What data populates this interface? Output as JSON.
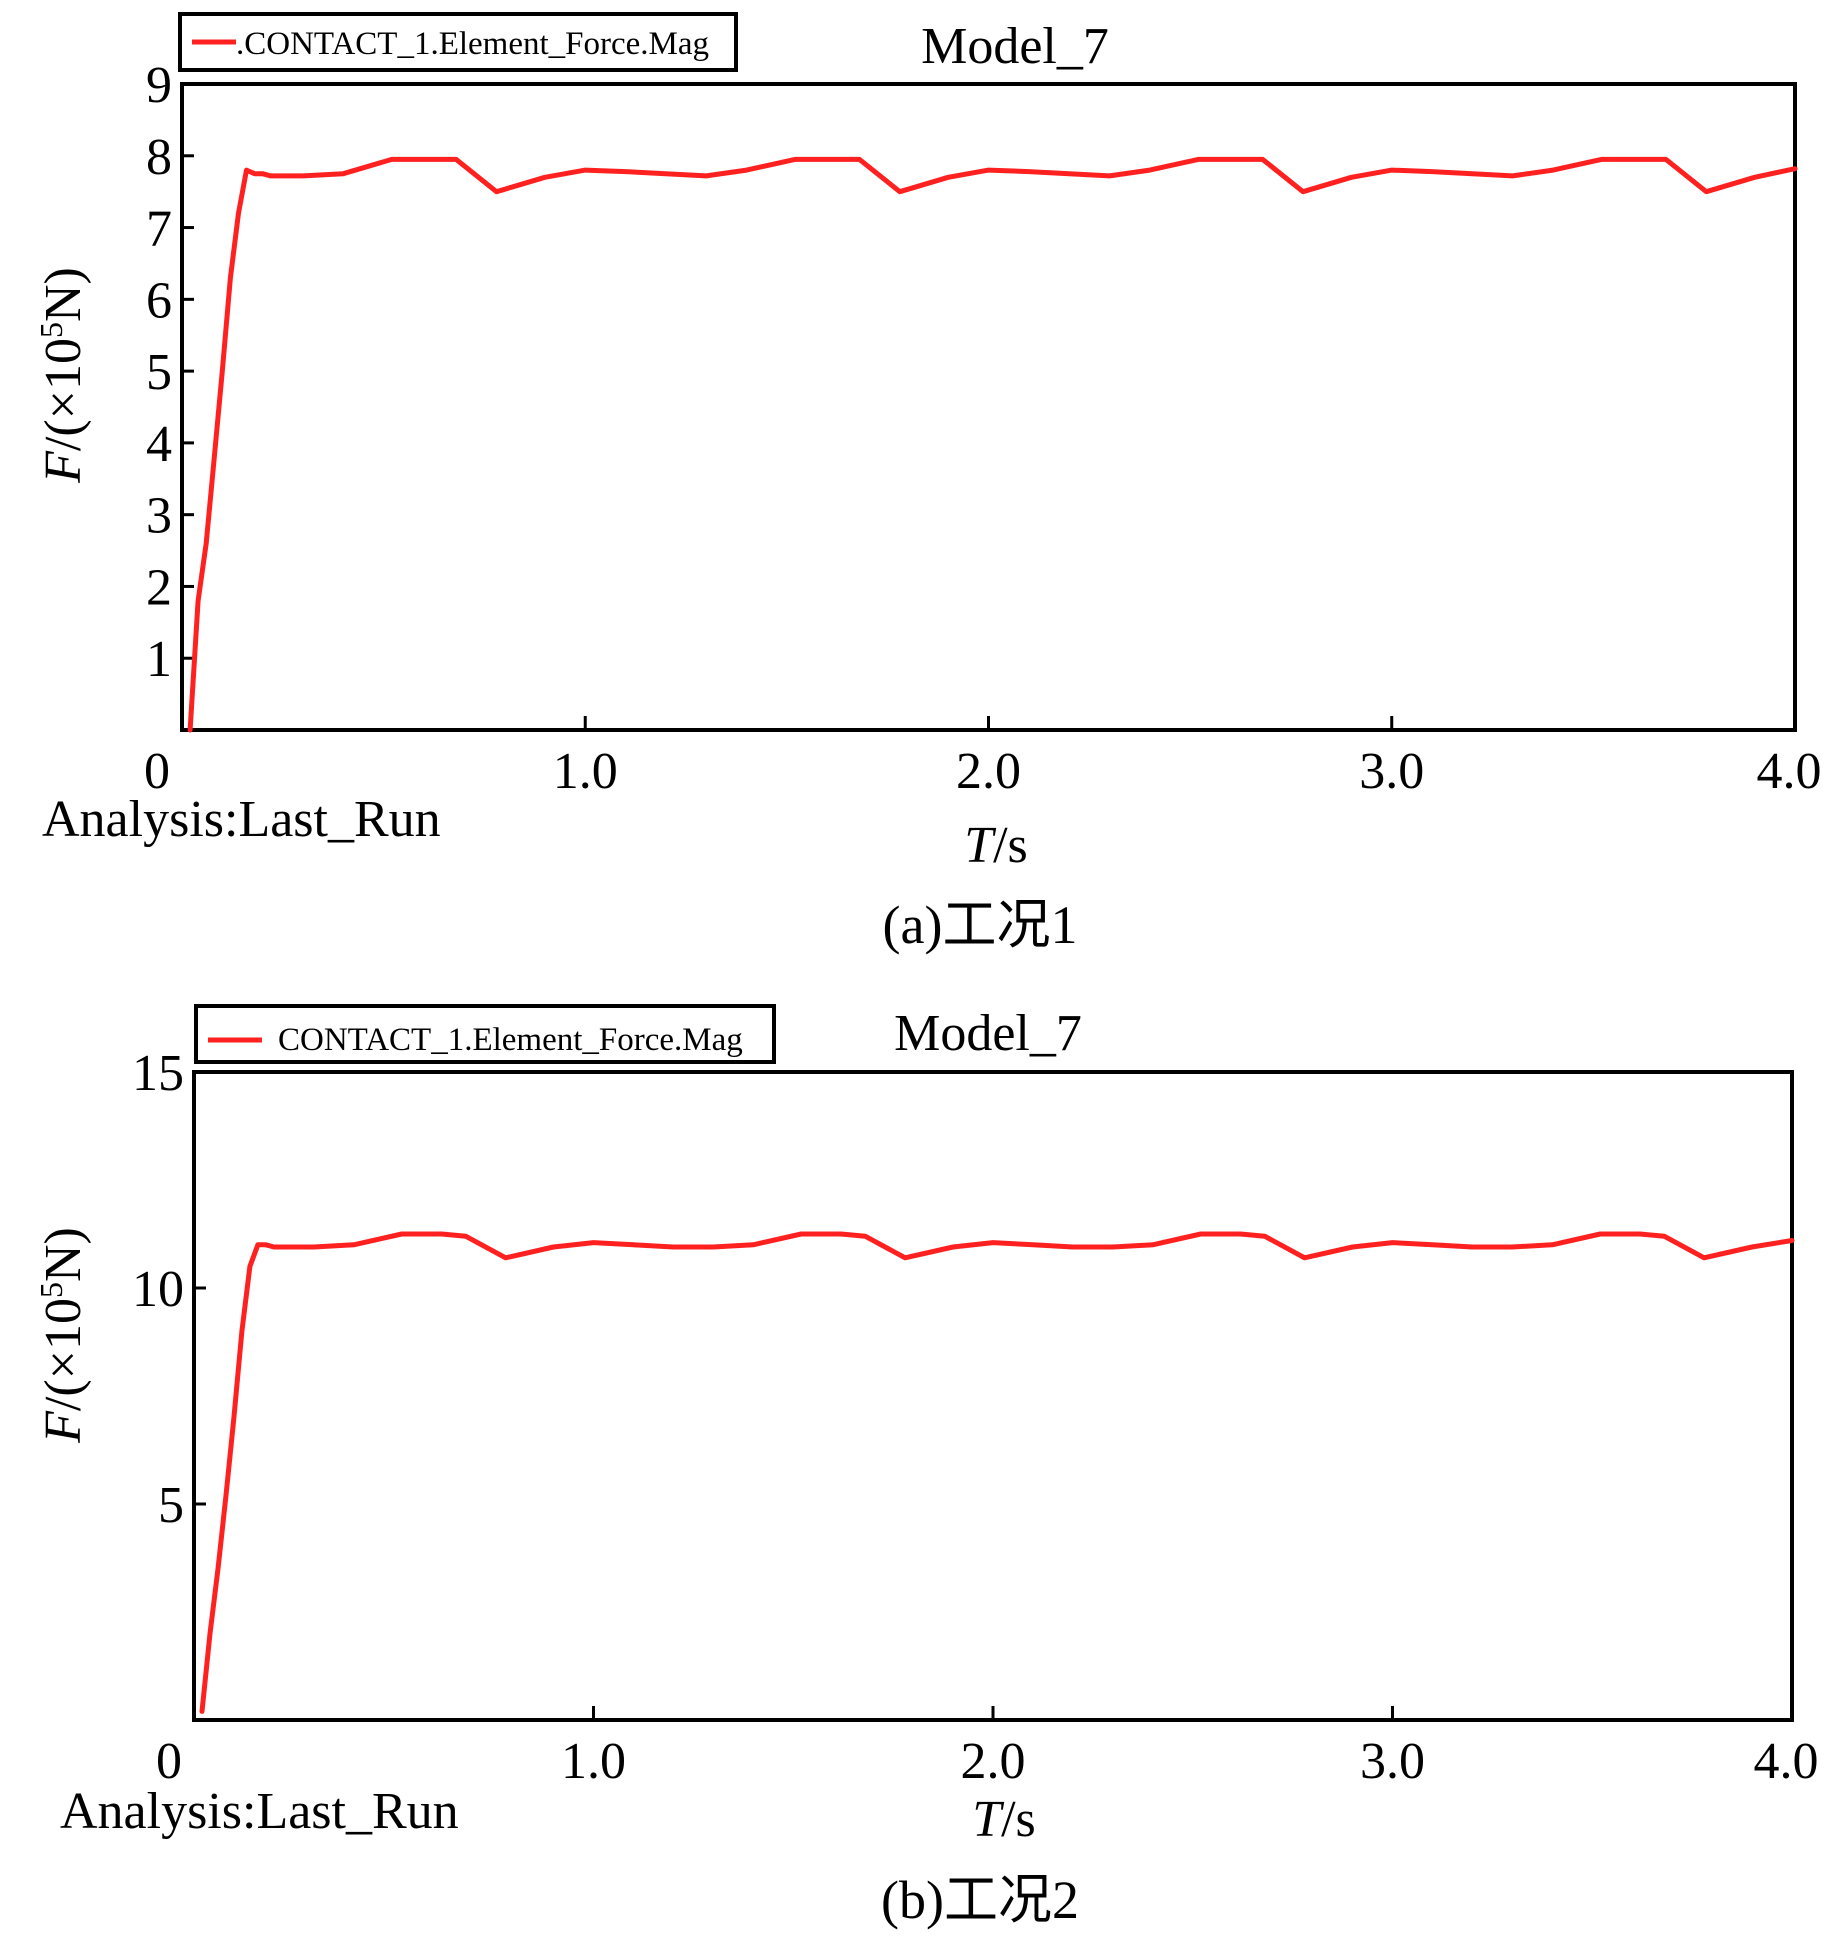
{
  "chart_data": [
    {
      "type": "line",
      "title": "Model_7",
      "legend": "CONTACT_1.Element_Force.Mag",
      "legend_prefix": ".",
      "legend_position": "top-left",
      "xlabel_italic": "T",
      "xlabel_unit": "/s",
      "ylabel_italic": "F",
      "ylabel_unit_pre": "/(×10",
      "ylabel_unit_exp": "5",
      "ylabel_unit_post": "N)",
      "note": "Analysis:Last_Run",
      "caption": "(a)工况1",
      "xlim": [
        0,
        4.0
      ],
      "ylim": [
        0,
        9
      ],
      "xticks": [
        {
          "v": 0,
          "label": "0"
        },
        {
          "v": 1.0,
          "label": "1.0"
        },
        {
          "v": 2.0,
          "label": "2.0"
        },
        {
          "v": 3.0,
          "label": "3.0"
        },
        {
          "v": 4.0,
          "label": "4.0"
        }
      ],
      "yticks": [
        {
          "v": 1,
          "label": "1"
        },
        {
          "v": 2,
          "label": "2"
        },
        {
          "v": 3,
          "label": "3"
        },
        {
          "v": 4,
          "label": "4"
        },
        {
          "v": 5,
          "label": "5"
        },
        {
          "v": 6,
          "label": "6"
        },
        {
          "v": 7,
          "label": "7"
        },
        {
          "v": 8,
          "label": "8"
        },
        {
          "v": 9,
          "label": "9"
        }
      ],
      "line_color": "#ff2020",
      "series": [
        {
          "name": "CONTACT_1.Element_Force.Mag",
          "x": [
            0.02,
            0.04,
            0.06,
            0.08,
            0.1,
            0.12,
            0.14,
            0.16,
            0.18,
            0.2,
            0.22,
            0.3,
            0.4,
            0.52,
            0.62,
            0.68,
            0.78,
            0.9,
            1.0,
            1.1,
            1.2,
            1.3,
            1.4,
            1.52,
            1.62,
            1.68,
            1.78,
            1.9,
            2.0,
            2.1,
            2.2,
            2.3,
            2.4,
            2.52,
            2.62,
            2.68,
            2.78,
            2.9,
            3.0,
            3.1,
            3.2,
            3.3,
            3.4,
            3.52,
            3.62,
            3.68,
            3.78,
            3.9,
            4.0
          ],
          "values": [
            0.0,
            1.8,
            2.6,
            3.8,
            5.0,
            6.3,
            7.2,
            7.8,
            7.75,
            7.75,
            7.72,
            7.72,
            7.75,
            7.95,
            7.95,
            7.95,
            7.5,
            7.7,
            7.8,
            7.78,
            7.75,
            7.72,
            7.8,
            7.95,
            7.95,
            7.95,
            7.5,
            7.7,
            7.8,
            7.78,
            7.75,
            7.72,
            7.8,
            7.95,
            7.95,
            7.95,
            7.5,
            7.7,
            7.8,
            7.78,
            7.75,
            7.72,
            7.8,
            7.95,
            7.95,
            7.95,
            7.5,
            7.7,
            7.82
          ]
        }
      ]
    },
    {
      "type": "line",
      "title": "Model_7",
      "legend": "CONTACT_1.Element_Force.Mag",
      "legend_prefix": "",
      "legend_position": "top-left",
      "xlabel_italic": "T",
      "xlabel_unit": "/s",
      "ylabel_italic": "F",
      "ylabel_unit_pre": "/(×10",
      "ylabel_unit_exp": "5",
      "ylabel_unit_post": "N)",
      "note": "Analysis:Last_Run",
      "caption": "(b)工况2",
      "xlim": [
        0,
        4.0
      ],
      "ylim": [
        0,
        15
      ],
      "xticks": [
        {
          "v": 0,
          "label": "0"
        },
        {
          "v": 1.0,
          "label": "1.0"
        },
        {
          "v": 2.0,
          "label": "2.0"
        },
        {
          "v": 3.0,
          "label": "3.0"
        },
        {
          "v": 4.0,
          "label": "4.0"
        }
      ],
      "yticks": [
        {
          "v": 5,
          "label": "5"
        },
        {
          "v": 10,
          "label": "10"
        },
        {
          "v": 15,
          "label": "15"
        }
      ],
      "line_color": "#ff2020",
      "series": [
        {
          "name": "CONTACT_1.Element_Force.Mag",
          "x": [
            0.02,
            0.04,
            0.06,
            0.08,
            0.1,
            0.12,
            0.14,
            0.16,
            0.18,
            0.2,
            0.22,
            0.3,
            0.4,
            0.52,
            0.62,
            0.68,
            0.78,
            0.9,
            1.0,
            1.1,
            1.2,
            1.3,
            1.4,
            1.52,
            1.62,
            1.68,
            1.78,
            1.9,
            2.0,
            2.1,
            2.2,
            2.3,
            2.4,
            2.52,
            2.62,
            2.68,
            2.78,
            2.9,
            3.0,
            3.1,
            3.2,
            3.3,
            3.4,
            3.52,
            3.62,
            3.68,
            3.78,
            3.9,
            4.0
          ],
          "values": [
            0.2,
            2.0,
            3.5,
            5.2,
            7.0,
            9.0,
            10.5,
            11.0,
            11.0,
            10.95,
            10.95,
            10.95,
            11.0,
            11.25,
            11.25,
            11.2,
            10.7,
            10.95,
            11.05,
            11.0,
            10.95,
            10.95,
            11.0,
            11.25,
            11.25,
            11.2,
            10.7,
            10.95,
            11.05,
            11.0,
            10.95,
            10.95,
            11.0,
            11.25,
            11.25,
            11.2,
            10.7,
            10.95,
            11.05,
            11.0,
            10.95,
            10.95,
            11.0,
            11.25,
            11.25,
            11.2,
            10.7,
            10.95,
            11.1
          ]
        }
      ]
    }
  ]
}
